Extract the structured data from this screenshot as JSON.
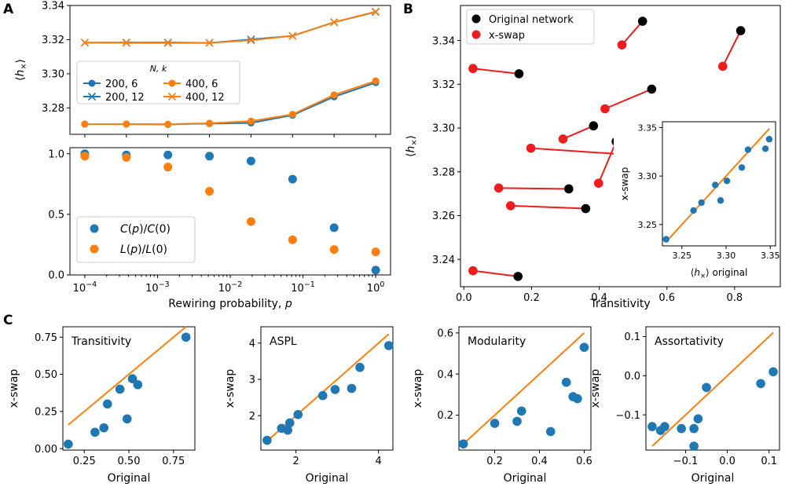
{
  "panel_labels": {
    "a": "A",
    "b": "B",
    "c": "C"
  },
  "colors": {
    "blue": "#1f77b4",
    "orange": "#ff7f0e",
    "black": "#000000",
    "red": "#ee1c1c",
    "red_line": "#ee1c1c"
  },
  "chart_data": [
    {
      "id": "A_top",
      "type": "line",
      "x_scale": "log",
      "xlim": [
        6.25e-05,
        1.6
      ],
      "ylim": [
        3.2645,
        3.34
      ],
      "yticks": [
        3.28,
        3.3,
        3.32,
        3.34
      ],
      "ytick_labels": [
        "3.28",
        "3.30",
        "3.32",
        "3.34"
      ],
      "ylabel": "⟨h×⟩",
      "x": [
        0.0001,
        0.000373,
        0.00139,
        0.00518,
        0.0193,
        0.072,
        0.268,
        1.0
      ],
      "legend": {
        "title": "N, k",
        "placement": "middle-left",
        "columns": 2
      },
      "series": [
        {
          "name": "200, 6",
          "color": "#1f77b4",
          "marker": "o",
          "values": [
            3.2705,
            3.2705,
            3.2703,
            3.2708,
            3.2712,
            3.2757,
            3.2865,
            3.2948
          ]
        },
        {
          "name": "200, 12",
          "color": "#1f77b4",
          "marker": "x",
          "values": [
            3.3182,
            3.3183,
            3.3183,
            3.3181,
            3.3201,
            3.3222,
            3.3302,
            3.3362
          ]
        },
        {
          "name": "400, 6",
          "color": "#ff7f0e",
          "marker": "o",
          "values": [
            3.2705,
            3.2705,
            3.2704,
            3.271,
            3.2722,
            3.2762,
            3.2876,
            3.2958
          ]
        },
        {
          "name": "400, 12",
          "color": "#ff7f0e",
          "marker": "x",
          "values": [
            3.3183,
            3.3181,
            3.318,
            3.3181,
            3.3196,
            3.3222,
            3.3302,
            3.3364
          ]
        }
      ]
    },
    {
      "id": "A_bottom",
      "type": "scatter",
      "x_scale": "log",
      "xlim": [
        6.25e-05,
        1.6
      ],
      "ylim": [
        0,
        1.05
      ],
      "xticks": [
        0.0001,
        0.001,
        0.01,
        0.1,
        1
      ],
      "xtick_labels": [
        "10−4",
        "10−3",
        "10−2",
        "10−1",
        "100"
      ],
      "yticks": [
        0.0,
        0.5,
        1.0
      ],
      "ytick_labels": [
        "0.0",
        "0.5",
        "1.0"
      ],
      "xlabel": "Rewiring probability, p",
      "x": [
        0.0001,
        0.000373,
        0.00139,
        0.00518,
        0.0193,
        0.072,
        0.268,
        1.0
      ],
      "legend": {
        "placement": "lower-left"
      },
      "series": [
        {
          "name": "C(p)/C(0)",
          "color": "#1f77b4",
          "values": [
            1.0,
            0.99,
            0.99,
            0.98,
            0.94,
            0.79,
            0.39,
            0.04
          ]
        },
        {
          "name": "L(p)/L(0)",
          "color": "#ff7f0e",
          "values": [
            0.98,
            0.97,
            0.89,
            0.69,
            0.44,
            0.29,
            0.21,
            0.19
          ]
        }
      ]
    },
    {
      "id": "B",
      "type": "scatter",
      "xlim": [
        -0.01,
        0.935
      ],
      "ylim": [
        3.2275,
        3.356
      ],
      "xticks": [
        0.0,
        0.2,
        0.4,
        0.6,
        0.8
      ],
      "xtick_labels": [
        "0.0",
        "0.2",
        "0.4",
        "0.6",
        "0.8"
      ],
      "yticks": [
        3.24,
        3.26,
        3.28,
        3.3,
        3.32,
        3.34
      ],
      "ytick_labels": [
        "3.24",
        "3.26",
        "3.28",
        "3.30",
        "3.32",
        "3.34"
      ],
      "xlabel": "Transitivity",
      "ylabel": "⟨h×⟩",
      "legend": {
        "placement": "top-left",
        "entries": [
          "Original network",
          "x-swap"
        ]
      },
      "pairs": [
        {
          "orig": [
            0.16,
            3.2322
          ],
          "swap": [
            0.027,
            3.2348
          ]
        },
        {
          "orig": [
            0.36,
            3.2632
          ],
          "swap": [
            0.138,
            3.2645
          ]
        },
        {
          "orig": [
            0.31,
            3.2722
          ],
          "swap": [
            0.103,
            3.2726
          ]
        },
        {
          "orig": [
            0.49,
            3.2878
          ],
          "swap": [
            0.198,
            3.2908
          ]
        },
        {
          "orig": [
            0.45,
            3.2938
          ],
          "swap": [
            0.398,
            3.2748
          ]
        },
        {
          "orig": [
            0.383,
            3.301
          ],
          "swap": [
            0.293,
            3.295
          ]
        },
        {
          "orig": [
            0.555,
            3.3178
          ],
          "swap": [
            0.417,
            3.3088
          ]
        },
        {
          "orig": [
            0.163,
            3.3248
          ],
          "swap": [
            0.027,
            3.3272
          ]
        },
        {
          "orig": [
            0.528,
            3.3488
          ],
          "swap": [
            0.467,
            3.338
          ]
        },
        {
          "orig": [
            0.818,
            3.3445
          ],
          "swap": [
            0.765,
            3.3282
          ]
        }
      ]
    },
    {
      "id": "B_inset",
      "type": "scatter",
      "xlim": [
        3.228,
        3.356
      ],
      "ylim": [
        3.228,
        3.356
      ],
      "xticks": [
        3.25,
        3.3,
        3.35
      ],
      "xtick_labels": [
        "3.25",
        "3.30",
        "3.35"
      ],
      "yticks": [
        3.25,
        3.3,
        3.35
      ],
      "ytick_labels": [
        "3.25",
        "3.30",
        "3.35"
      ],
      "xlabel": "⟨h×⟩ original",
      "ylabel": "x-swap",
      "identity_line": true,
      "x": [
        3.2322,
        3.2632,
        3.2722,
        3.2878,
        3.2938,
        3.301,
        3.3178,
        3.3248,
        3.3488,
        3.3445
      ],
      "y": [
        3.2348,
        3.2645,
        3.2726,
        3.2908,
        3.2748,
        3.295,
        3.3088,
        3.3272,
        3.338,
        3.3282
      ]
    },
    {
      "id": "C_transitivity",
      "type": "scatter",
      "title": "Transitivity",
      "xlim": [
        0.13,
        0.87
      ],
      "ylim": [
        -0.01,
        0.82
      ],
      "xticks": [
        0.25,
        0.5,
        0.75
      ],
      "xtick_labels": [
        "0.25",
        "0.50",
        "0.75"
      ],
      "yticks": [
        0.0,
        0.25,
        0.5,
        0.75
      ],
      "ytick_labels": [
        "0.00",
        "0.25",
        "0.50",
        "0.75"
      ],
      "xlabel": "Original",
      "ylabel": "x-swap",
      "identity_line": [
        0.16,
        0.82
      ],
      "x": [
        0.16,
        0.31,
        0.36,
        0.38,
        0.45,
        0.49,
        0.52,
        0.55,
        0.82
      ],
      "y": [
        0.03,
        0.11,
        0.14,
        0.3,
        0.4,
        0.2,
        0.47,
        0.43,
        0.75
      ]
    },
    {
      "id": "C_aspl",
      "type": "scatter",
      "title": "ASPL",
      "xlim": [
        1.15,
        4.35
      ],
      "ylim": [
        1.05,
        4.45
      ],
      "xticks": [
        2,
        4
      ],
      "xtick_labels": [
        "2",
        "4"
      ],
      "yticks": [
        2,
        3,
        4
      ],
      "ytick_labels": [
        "2",
        "3",
        "4"
      ],
      "xlabel": "Original",
      "ylabel": "x-swap",
      "identity_line": [
        1.3,
        4.25
      ],
      "x": [
        1.3,
        1.65,
        1.8,
        1.85,
        2.05,
        2.65,
        2.95,
        3.35,
        3.55,
        4.25
      ],
      "y": [
        1.32,
        1.65,
        1.6,
        1.8,
        2.03,
        2.55,
        2.72,
        2.75,
        3.33,
        3.93
      ]
    },
    {
      "id": "C_modularity",
      "type": "scatter",
      "title": "Modularity",
      "xlim": [
        0.04,
        0.63
      ],
      "ylim": [
        0.03,
        0.63
      ],
      "xticks": [
        0.2,
        0.4,
        0.6
      ],
      "xtick_labels": [
        "0.2",
        "0.4",
        "0.6"
      ],
      "yticks": [
        0.2,
        0.4,
        0.6
      ],
      "ytick_labels": [
        "0.2",
        "0.4",
        "0.6"
      ],
      "xlabel": "Original",
      "ylabel": "x-swap",
      "identity_line": [
        0.06,
        0.6
      ],
      "x": [
        0.06,
        0.2,
        0.3,
        0.32,
        0.45,
        0.52,
        0.55,
        0.57,
        0.6
      ],
      "y": [
        0.06,
        0.16,
        0.17,
        0.22,
        0.12,
        0.36,
        0.29,
        0.28,
        0.53
      ]
    },
    {
      "id": "C_assortativity",
      "type": "scatter",
      "title": "Assortativity",
      "xlim": [
        -0.195,
        0.125
      ],
      "ylim": [
        -0.19,
        0.125
      ],
      "xticks": [
        -0.1,
        0.0,
        0.1
      ],
      "xtick_labels": [
        "−0.1",
        "0.0",
        "0.1"
      ],
      "yticks": [
        -0.1,
        0.0,
        0.1
      ],
      "ytick_labels": [
        "−0.1",
        "0.0",
        "0.1"
      ],
      "xlabel": "Original",
      "ylabel": "x-swap",
      "identity_line": [
        -0.18,
        0.11
      ],
      "x": [
        -0.18,
        -0.16,
        -0.15,
        -0.11,
        -0.08,
        -0.08,
        -0.07,
        -0.05,
        0.08,
        0.11
      ],
      "y": [
        -0.13,
        -0.14,
        -0.13,
        -0.135,
        -0.135,
        -0.18,
        -0.11,
        -0.03,
        -0.02,
        0.01
      ]
    }
  ]
}
